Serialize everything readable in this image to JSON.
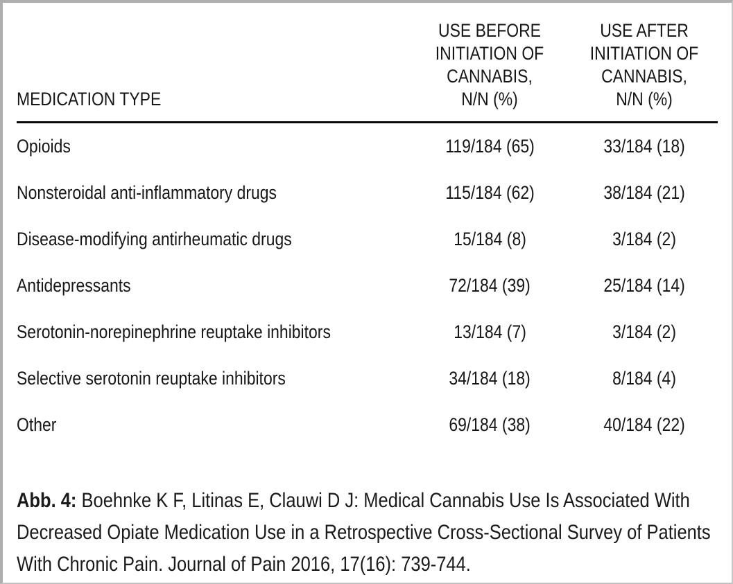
{
  "page": {
    "background": "#ffffff",
    "border_color": "#aeaeae",
    "text_color": "#161616",
    "rule_color": "#0a0a0a"
  },
  "table": {
    "header": {
      "medication_type": "MEDICATION TYPE",
      "use_before": "USE BEFORE\nINITIATION OF\nCANNABIS,\nN/N (%)",
      "use_after": "USE AFTER\nINITIATION OF\nCANNABIS,\nN/N (%)"
    },
    "rows": [
      {
        "medication": "Opioids",
        "before": "119/184 (65)",
        "after": "33/184 (18)"
      },
      {
        "medication": "Nonsteroidal anti-inflammatory drugs",
        "before": "115/184 (62)",
        "after": "38/184 (21)"
      },
      {
        "medication": "Disease-modifying antirheumatic drugs",
        "before": "15/184 (8)",
        "after": "3/184 (2)"
      },
      {
        "medication": "Antidepressants",
        "before": "72/184 (39)",
        "after": "25/184 (14)"
      },
      {
        "medication": "Serotonin-norepinephrine reuptake inhibitors",
        "before": "13/184 (7)",
        "after": "3/184 (2)"
      },
      {
        "medication": "Selective serotonin reuptake inhibitors",
        "before": "34/184 (18)",
        "after": "8/184 (4)"
      },
      {
        "medication": "Other",
        "before": "69/184 (38)",
        "after": "40/184 (22)"
      }
    ]
  },
  "caption": {
    "label": "Abb. 4:",
    "text": "Boehnke K F, Litinas E, Clauwi D J: Medical Cannabis Use Is Associated With Decreased Opiate Medication Use in a Retrospective Cross-Sectional Survey of Patients With Chronic Pain. Journal of Pain 2016, 17(16): 739-744."
  },
  "chart_data": {
    "type": "table",
    "columns": [
      "MEDICATION TYPE",
      "USE BEFORE INITIATION OF CANNABIS, N/N (%)",
      "USE AFTER INITIATION OF CANNABIS, N/N (%)"
    ],
    "rows": [
      [
        "Opioids",
        "119/184 (65)",
        "33/184 (18)"
      ],
      [
        "Nonsteroidal anti-inflammatory drugs",
        "115/184 (62)",
        "38/184 (21)"
      ],
      [
        "Disease-modifying antirheumatic drugs",
        "15/184 (8)",
        "3/184 (2)"
      ],
      [
        "Antidepressants",
        "72/184 (39)",
        "25/184 (14)"
      ],
      [
        "Serotonin-norepinephrine reuptake inhibitors",
        "13/184 (7)",
        "3/184 (2)"
      ],
      [
        "Selective serotonin reuptake inhibitors",
        "34/184 (18)",
        "8/184 (4)"
      ],
      [
        "Other",
        "69/184 (38)",
        "40/184 (22)"
      ]
    ]
  }
}
